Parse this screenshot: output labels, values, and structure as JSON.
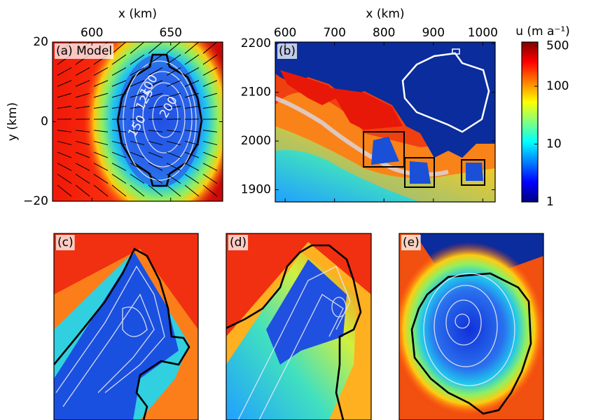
{
  "chart_data": [
    {
      "type": "heatmap",
      "panel_label": "(a) Model",
      "xlabel": "x (km)",
      "ylabel": "y (km)",
      "xlim": [
        575,
        683
      ],
      "xticks": [
        600,
        650
      ],
      "ylim": [
        -20,
        20
      ],
      "yticks": [
        20,
        0,
        {
          "value": -20,
          "label": "−20"
        }
      ],
      "contour_labels": [
        100,
        125,
        150,
        200
      ]
    },
    {
      "type": "heatmap",
      "panel_label": "(b)",
      "xlabel": "x (km)",
      "xlim": [
        580,
        1025
      ],
      "xticks": [
        600,
        700,
        800,
        900,
        1000
      ],
      "ylim": [
        1875,
        2203
      ],
      "yticks": [
        1900,
        2000,
        2100,
        2200
      ]
    },
    {
      "type": "colorbar",
      "label": "u (m a⁻¹)",
      "log_scale": true,
      "ylim": [
        1,
        580
      ],
      "yticks": [
        1,
        10,
        100,
        500
      ]
    },
    {
      "type": "heatmap",
      "panel_label": "(c)"
    },
    {
      "type": "heatmap",
      "panel_label": "(d)"
    },
    {
      "type": "heatmap",
      "panel_label": "(e)"
    }
  ]
}
